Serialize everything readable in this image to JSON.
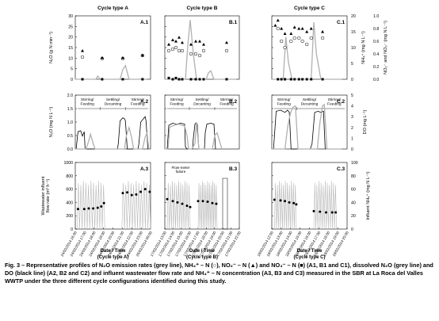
{
  "figure": {
    "caption_prefix": "Fig. 3 – ",
    "caption_text": "Representative profiles of N₂O emission rates (grey line), NH₄⁺ – N (○), NO₂⁻ – N (▲) and NO₃⁻ – N (■) (A1, B1 and C1), dissolved N₂O (grey line) and DO (black line) (A2, B2 and C2) and influent wastewater flow rate and NH₄⁺ – N concentration (A3, B3 and C3) measured in the SBR at La Roca del Valles WWTP under the three different cycle configurations identified during this study."
  },
  "columns": [
    {
      "title": "Cycle type A",
      "xlabel_1": "Date / Time",
      "xlabel_2": "(Cycle type A)",
      "panel_labels": [
        "A.1",
        "A.2",
        "A.3"
      ],
      "phases": [
        "Stirring/\nFeeding",
        "Settling/\nDecanting",
        "Stirring/\nFeeding"
      ],
      "ticks": [
        "24/02/2014 16:00",
        "24/02/2014 17:00",
        "24/02/2014 18:00",
        "24/02/2014 19:00",
        "24/02/2014 20:00",
        "24/02/2014 21:00",
        "24/02/2014 22:00",
        "24/02/2014 23:00",
        "25/02/2014 00:00"
      ]
    },
    {
      "title": "Cycle type B",
      "xlabel_1": "Date / Time",
      "xlabel_2": "(Cycle type B)",
      "panel_labels": [
        "B.1",
        "B.2",
        "B.3"
      ],
      "phases": [
        "Stirring/\nFeeding",
        "Settling/\nDecanting",
        "Stirring/\nFeeding"
      ],
      "annotation": "Flow-meter\nfailure",
      "ticks": [
        "17/02/2014 13:00",
        "17/02/2014 14:00",
        "17/02/2014 15:00",
        "17/02/2014 16:00",
        "17/02/2014 17:00",
        "17/02/2014 18:00",
        "17/02/2014 19:00",
        "17/02/2014 20:00",
        "17/02/2014 21:00",
        "17/02/2014 22:00"
      ]
    },
    {
      "title": "Cycle type C",
      "xlabel_1": "Date / Time",
      "xlabel_2": "(Cycle type C)",
      "panel_labels": [
        "C.1",
        "C.2",
        "C.3"
      ],
      "phases": [
        "Stirring/\nFeeding",
        "Settling/\nDecanting",
        "Stirring/\nFeeding"
      ],
      "ticks": [
        "18/02/2014 12:00",
        "18/02/2014 13:00",
        "18/02/2014 14:00",
        "18/02/2014 15:00",
        "18/02/2014 16:00",
        "18/02/2014 17:00",
        "18/02/2014 18:00",
        "18/02/2014 19:00",
        "18/02/2014 20:00"
      ]
    }
  ],
  "axes": {
    "row1_left_label": "N₂O (g N min⁻¹)",
    "row1_right_label_a": "NH₄⁺ (mg N L⁻¹)",
    "row1_right_label_b": "NO₂⁻ and NO₃⁻ (mg N L⁻¹)",
    "row2_left_label": "N₂O (mg N L⁻¹)",
    "row2_right_label": "DO (mg L⁻¹)",
    "row3_left_label": "Wastewater influent\nflow rate (m³ h⁻¹)",
    "row3_right_label": "Influent NH₄⁺ (mg N L⁻¹)",
    "row1_left_ticks": [
      "0",
      "5",
      "10",
      "15",
      "20",
      "25",
      "30"
    ],
    "row1_right_ticks_a": [
      "0",
      "5",
      "10",
      "15",
      "20"
    ],
    "row1_right_ticks_b": [
      "0.0",
      "0.2",
      "0.4",
      "0.6",
      "0.8",
      "1.0"
    ],
    "row2_left_ticks": [
      "0.0",
      "0.5",
      "1.0",
      "1.5",
      "2.0"
    ],
    "row2_right_ticks": [
      "0",
      "1",
      "2",
      "3",
      "4",
      "5"
    ],
    "row3_left_ticks": [
      "0",
      "200",
      "400",
      "600",
      "800",
      "1000"
    ],
    "row3_right_ticks": [
      "0",
      "20",
      "40",
      "60",
      "80",
      "100"
    ]
  },
  "chart_data": [
    {
      "type": "scatter",
      "panel": "A.1",
      "ylim_left": [
        0,
        30
      ],
      "ylim_right_nh4": [
        0,
        20
      ],
      "ylim_right_nox": [
        0,
        1.0
      ],
      "series": [
        {
          "name": "N2O emission (grey line)",
          "x": [
            0,
            2.3,
            2.5,
            2.8,
            3.2,
            5.0,
            5.3,
            5.6,
            6.0,
            8.0
          ],
          "values": [
            0,
            0,
            1.5,
            0,
            0,
            0,
            4.5,
            6.5,
            0,
            0
          ]
        },
        {
          "name": "NH4+-N (open circle)",
          "x": [
            0.8,
            3.0,
            5.3,
            7.5
          ],
          "values": [
            7,
            6.5,
            6.5,
            7.5
          ]
        },
        {
          "name": "NO2--N (triangle)",
          "x": [
            0.8,
            3.0,
            5.3,
            7.5
          ],
          "values": [
            0.45,
            0.34,
            0.34,
            0.38
          ]
        },
        {
          "name": "NO3--N (square)",
          "x": [
            0.8,
            3.0,
            5.3,
            7.5
          ],
          "values": [
            0.0,
            0.0,
            0.0,
            0.0
          ]
        }
      ]
    },
    {
      "type": "scatter",
      "panel": "B.1",
      "series": [
        {
          "name": "N2O emission (grey line)",
          "x": [
            0,
            2.6,
            2.9,
            3.2,
            3.6,
            4.0,
            5.2,
            5.5,
            5.8,
            6.2,
            6.6,
            9.0
          ],
          "values": [
            0,
            0,
            16,
            28,
            12,
            0,
            0,
            3,
            4,
            0,
            0,
            0
          ]
        },
        {
          "name": "NH4+-N (open circle)",
          "x": [
            0.5,
            1.0,
            1.4,
            1.8,
            2.2,
            3.3,
            3.9,
            4.4,
            4.9,
            7.8
          ],
          "values": [
            9,
            9.5,
            10,
            9,
            9,
            8,
            8,
            7.5,
            9,
            9
          ]
        },
        {
          "name": "NO2--N (triangle)",
          "x": [
            0.5,
            1.0,
            1.4,
            1.8,
            2.2,
            3.3,
            3.9,
            4.4,
            4.9,
            7.8
          ],
          "values": [
            0.55,
            0.62,
            0.6,
            0.66,
            0.58,
            0.55,
            0.6,
            0.6,
            0.55,
            0.58
          ]
        },
        {
          "name": "NO3--N (square)",
          "x": [
            0.5,
            1.0,
            1.4,
            1.8,
            2.2,
            3.3,
            3.9,
            4.4,
            4.9,
            7.8
          ],
          "values": [
            0.02,
            0.0,
            0.02,
            0.0,
            0.0,
            0.0,
            0.0,
            0.0,
            0.0,
            0.0
          ]
        }
      ]
    },
    {
      "type": "scatter",
      "panel": "C.1",
      "series": [
        {
          "name": "N2O emission (grey line)",
          "x": [
            0,
            1.3,
            1.6,
            1.9,
            2.3,
            4.5,
            4.8,
            5.1,
            5.6,
            8.0
          ],
          "values": [
            0,
            0,
            20,
            8,
            0,
            0,
            27,
            12,
            0,
            0
          ]
        },
        {
          "name": "NH4+-N (open circle)",
          "x": [
            0.7,
            1.1,
            1.5,
            2.2,
            2.6,
            3.1,
            3.5,
            4.0,
            4.5,
            5.8
          ],
          "values": [
            16,
            12,
            10,
            12,
            13,
            13,
            12,
            11,
            13,
            13
          ]
        },
        {
          "name": "NO2--N (triangle)",
          "x": [
            0.4,
            0.7,
            1.1,
            1.5,
            2.2,
            2.6,
            3.1,
            3.5,
            4.0,
            4.5,
            5.8
          ],
          "values": [
            0.85,
            0.93,
            0.8,
            0.72,
            0.72,
            0.82,
            0.8,
            0.8,
            0.75,
            0.8,
            0.75
          ]
        },
        {
          "name": "NO3--N (square)",
          "x": [
            0.7,
            1.1,
            1.5,
            2.2,
            2.6,
            3.1,
            3.5,
            4.0,
            4.5,
            5.8
          ],
          "values": [
            0.0,
            0.0,
            0.0,
            0.0,
            0.0,
            0.0,
            0.0,
            0.0,
            0.0,
            0.0
          ]
        }
      ]
    },
    {
      "type": "line",
      "panel": "A.2",
      "ylim_left": [
        0,
        2.0
      ],
      "ylim_right": [
        0,
        5
      ],
      "series": [
        {
          "name": "Dissolved N2O (grey line)",
          "x": [
            0,
            1.2,
            1.5,
            1.7,
            2.0,
            2.2,
            5.5,
            5.7,
            6.0,
            6.3,
            6.5,
            7.5,
            7.8,
            8.0,
            8.2
          ],
          "values": [
            0,
            0,
            0.3,
            0.55,
            0.2,
            0,
            0,
            0.5,
            0.8,
            0.4,
            0,
            0,
            0.45,
            0.6,
            0
          ]
        },
        {
          "name": "DO (black line)",
          "x": [
            0,
            0.1,
            0.3,
            0.6,
            0.8,
            1.0,
            1.1,
            1.4,
            4.7,
            4.8,
            5.0,
            5.3,
            5.5,
            5.6,
            5.8,
            7.0,
            7.1,
            7.3,
            7.6,
            7.8,
            7.9,
            8.1
          ],
          "values": [
            0,
            0,
            1.6,
            1.7,
            1.2,
            1.6,
            0,
            0,
            0,
            0.5,
            2.6,
            2.9,
            2.8,
            2.6,
            0,
            0,
            0.5,
            2.5,
            2.8,
            3.0,
            2.6,
            0
          ]
        }
      ]
    },
    {
      "type": "line",
      "panel": "B.2",
      "series": [
        {
          "name": "Dissolved N2O (grey line)",
          "x": [
            0,
            0.4,
            0.6,
            0.9,
            1.4,
            1.8,
            2.2,
            2.5,
            2.8,
            3.0,
            3.4,
            3.8,
            4.0,
            4.3,
            6.0,
            6.3,
            6.6,
            6.9,
            7.2
          ],
          "values": [
            0,
            0,
            0.8,
            0.85,
            0.9,
            0.92,
            0.88,
            0.85,
            0.5,
            0,
            0,
            0.2,
            1.0,
            0,
            0,
            0.5,
            0.6,
            0.3,
            0
          ]
        },
        {
          "name": "DO (black line)",
          "x": [
            0,
            0.3,
            0.5,
            1.0,
            1.5,
            2.0,
            2.5,
            2.6,
            2.8,
            3.5,
            3.6,
            3.8,
            3.9,
            4.1,
            4.3,
            5.0,
            5.1,
            5.3,
            5.8,
            6.2,
            6.4
          ],
          "values": [
            0,
            0,
            2.2,
            2.4,
            2.3,
            2.4,
            2.3,
            0.2,
            0,
            0,
            1.0,
            2.3,
            2.4,
            2.3,
            0,
            0,
            1.5,
            2.3,
            2.4,
            2.3,
            0
          ]
        }
      ]
    },
    {
      "type": "line",
      "panel": "C.2",
      "series": [
        {
          "name": "Dissolved N2O (grey line)",
          "x": [
            0,
            1.5,
            1.8,
            2.1,
            2.4,
            2.7,
            3.0,
            5.2,
            5.5,
            5.8,
            6.0,
            6.3,
            8.0
          ],
          "values": [
            0,
            0,
            0.8,
            1.3,
            1.55,
            1.6,
            0,
            0,
            1.0,
            1.6,
            1.65,
            0,
            0
          ]
        },
        {
          "name": "DO (black line)",
          "x": [
            0,
            0.2,
            0.5,
            1.0,
            1.5,
            1.8,
            2.0,
            2.2,
            4.4,
            4.6,
            4.9,
            5.3,
            5.6,
            5.9,
            6.1
          ],
          "values": [
            0,
            0,
            3.5,
            3.6,
            3.4,
            3.6,
            3.4,
            0,
            0,
            0.5,
            3.4,
            3.5,
            3.4,
            3.5,
            0
          ]
        }
      ]
    },
    {
      "type": "line",
      "panel": "A.3",
      "ylim_left": [
        0,
        1000
      ],
      "ylim_right": [
        0,
        100
      ],
      "series": [
        {
          "name": "Wastewater influent flow rate (grey line)",
          "pattern": "oscillating 0–720 m3/h pump cycles",
          "x": [
            0.2,
            3.3,
            5.2,
            8.4
          ],
          "values": [
            720,
            720,
            720,
            720
          ]
        },
        {
          "name": "Influent NH4+-N (filled circle)",
          "x": [
            0.3,
            1.0,
            1.5,
            2.0,
            2.5,
            2.9,
            3.2,
            5.3,
            5.8,
            6.3,
            6.8,
            7.3,
            7.8,
            8.3
          ],
          "values": [
            30,
            30,
            31,
            31,
            32,
            34,
            39,
            54,
            55,
            51,
            52,
            56,
            60,
            56
          ]
        }
      ]
    },
    {
      "type": "line",
      "panel": "B.3",
      "series": [
        {
          "name": "Wastewater influent flow rate (grey line)",
          "pattern": "oscillating 0–720 m3/h pump cycles",
          "x": [
            0.3,
            3.2,
            4.2,
            6.6
          ],
          "values": [
            720,
            720,
            720,
            720
          ]
        },
        {
          "name": "Influent NH4+-N (filled circle)",
          "x": [
            0.3,
            1.0,
            1.6,
            2.2,
            2.8,
            3.2,
            4.2,
            4.8,
            5.4,
            6.0,
            6.5
          ],
          "values": [
            45,
            42,
            40,
            38,
            35,
            33,
            42,
            42,
            41,
            39,
            38
          ]
        }
      ]
    },
    {
      "type": "line",
      "panel": "C.3",
      "series": [
        {
          "name": "Wastewater influent flow rate (grey line)",
          "pattern": "oscillating 0–720 m3/h pump cycles",
          "x": [
            0.3,
            2.8,
            4.8,
            7.4
          ],
          "values": [
            720,
            720,
            720,
            720
          ]
        },
        {
          "name": "Influent NH4+-N (filled circle)",
          "x": [
            0.3,
            1.0,
            1.5,
            2.0,
            2.5,
            2.8,
            4.8,
            5.5,
            6.2,
            6.9,
            7.3
          ],
          "values": [
            44,
            43,
            42,
            40,
            39,
            37,
            27,
            26,
            25,
            25,
            25
          ]
        }
      ]
    }
  ]
}
